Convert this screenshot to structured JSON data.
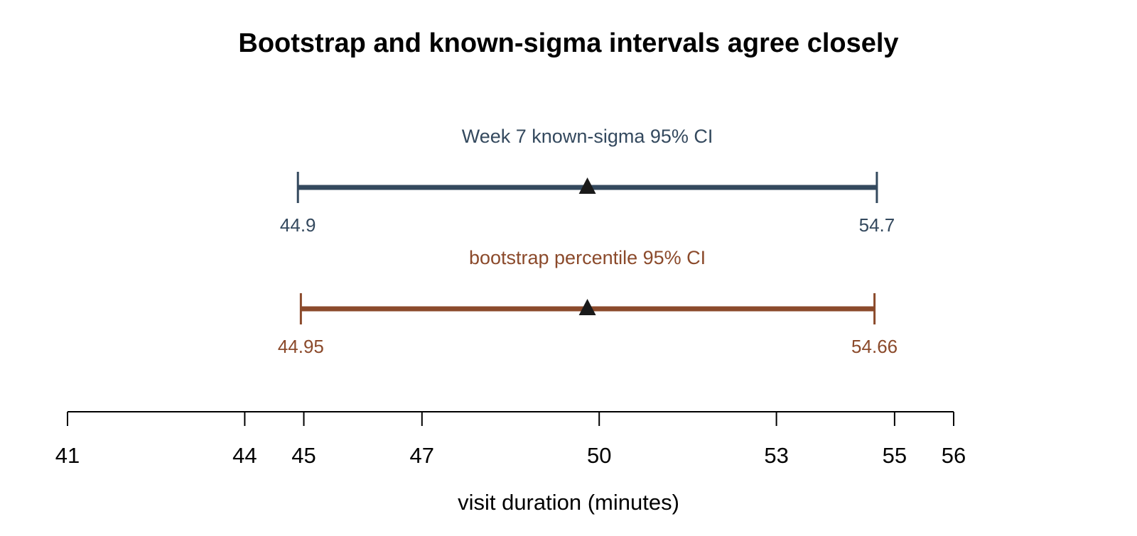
{
  "chart_data": {
    "type": "interval",
    "title": "Bootstrap and known-sigma intervals agree closely",
    "xlabel": "visit duration (minutes)",
    "xlim": [
      41,
      56
    ],
    "x_ticks": [
      41,
      44,
      45,
      47,
      50,
      53,
      55,
      56
    ],
    "x_tick_labels": [
      "41",
      "44",
      "45",
      "47",
      "50",
      "53",
      "55",
      "56"
    ],
    "point_marker": "triangle",
    "intervals": [
      {
        "name": "Week 7 known-sigma 95% CI",
        "lower": 44.9,
        "upper": 54.7,
        "estimate": 49.8,
        "lower_label": "44.9",
        "upper_label": "54.7",
        "color": "#34495e"
      },
      {
        "name": "bootstrap percentile 95% CI",
        "lower": 44.95,
        "upper": 54.66,
        "estimate": 49.8,
        "lower_label": "44.95",
        "upper_label": "54.66",
        "color": "#8b4a2b"
      }
    ]
  }
}
